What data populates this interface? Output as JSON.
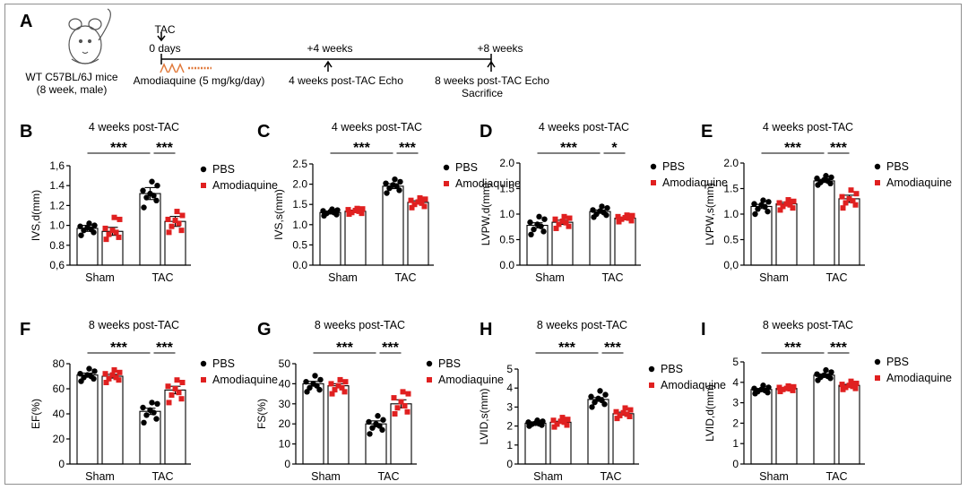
{
  "panel_a": {
    "letter": "A",
    "mouse_label_line1": "WT C57BL/6J mice",
    "mouse_label_line2": "(8 week, male)",
    "tac_label": "TAC",
    "day0_label": "0 days",
    "week4_label": "+4 weeks",
    "week8_label": "+8 weeks",
    "treatment_label": "Amodiaquine (5 mg/kg/day)",
    "echo4_label": "4 weeks post-TAC Echo",
    "echo8_label": "8 weeks post-TAC Echo",
    "sacrifice_label": "Sacrifice",
    "colors": {
      "treatment": "#e07a3c"
    }
  },
  "legend": {
    "pbs": "PBS",
    "amodiaquine": "Amodiaquine"
  },
  "colors": {
    "pbs": "#000000",
    "amodiaquine": "#e02020"
  },
  "chart_data": [
    {
      "letter": "B",
      "type": "bar",
      "title": "4 weeks post-TAC",
      "ylabel": "IVS,d(mm)",
      "categories": [
        "Sham",
        "TAC"
      ],
      "ylim": [
        0.6,
        1.6
      ],
      "yticks": [
        0.6,
        0.8,
        1.0,
        1.2,
        1.4,
        1.6
      ],
      "ytick_labels": [
        "0,6",
        "0.8",
        "1.0",
        "1.2",
        "1.4",
        "1,6"
      ],
      "significance": [
        "***",
        "***"
      ],
      "series": [
        {
          "name": "PBS",
          "values": [
            0.97,
            1.32
          ],
          "error": [
            0.03,
            0.06
          ],
          "points": [
            [
              0.9,
              0.93,
              0.95,
              0.96,
              0.98,
              0.99,
              1.0,
              1.02
            ],
            [
              1.18,
              1.25,
              1.28,
              1.3,
              1.32,
              1.35,
              1.4,
              1.44
            ]
          ]
        },
        {
          "name": "Amodiaquine",
          "values": [
            0.94,
            1.04
          ],
          "error": [
            0.04,
            0.05
          ],
          "points": [
            [
              0.86,
              0.88,
              0.91,
              0.93,
              0.95,
              0.97,
              1.06,
              1.08
            ],
            [
              0.93,
              0.95,
              0.99,
              1.02,
              1.05,
              1.06,
              1.1,
              1.14
            ]
          ]
        }
      ]
    },
    {
      "letter": "C",
      "type": "bar",
      "title": "4 weeks post-TAC",
      "ylabel": "IVS,s(mm)",
      "categories": [
        "Sham",
        "TAC"
      ],
      "ylim": [
        0,
        2.5
      ],
      "yticks": [
        0,
        0.5,
        1.0,
        1.5,
        2.0,
        2.5
      ],
      "ytick_labels": [
        "0.0",
        "0.5",
        "1.0",
        "1.5",
        "2.0",
        "2.5"
      ],
      "significance": [
        "***",
        "***"
      ],
      "series": [
        {
          "name": "PBS",
          "values": [
            1.3,
            1.95
          ],
          "error": [
            0.03,
            0.06
          ],
          "points": [
            [
              1.22,
              1.25,
              1.28,
              1.3,
              1.32,
              1.34,
              1.36,
              1.38
            ],
            [
              1.78,
              1.85,
              1.9,
              1.95,
              1.98,
              2.02,
              2.06,
              2.12
            ]
          ]
        },
        {
          "name": "Amodiaquine",
          "values": [
            1.33,
            1.55
          ],
          "error": [
            0.03,
            0.04
          ],
          "points": [
            [
              1.26,
              1.28,
              1.3,
              1.33,
              1.35,
              1.37,
              1.39,
              1.4
            ],
            [
              1.42,
              1.45,
              1.5,
              1.53,
              1.56,
              1.6,
              1.63,
              1.66
            ]
          ]
        }
      ]
    },
    {
      "letter": "D",
      "type": "bar",
      "title": "4 weeks post-TAC",
      "ylabel": "LVPW,d(mm)",
      "categories": [
        "Sham",
        "TAC"
      ],
      "ylim": [
        0,
        2.0
      ],
      "yticks": [
        0,
        0.5,
        1.0,
        1.5,
        2.0
      ],
      "ytick_labels": [
        "0.0",
        "0.5",
        "1.0",
        "1.5",
        "2.0"
      ],
      "significance": [
        "***",
        "*"
      ],
      "series": [
        {
          "name": "PBS",
          "values": [
            0.78,
            1.05
          ],
          "error": [
            0.05,
            0.03
          ],
          "points": [
            [
              0.6,
              0.66,
              0.7,
              0.76,
              0.8,
              0.84,
              0.9,
              0.95
            ],
            [
              0.94,
              0.98,
              1.0,
              1.03,
              1.06,
              1.08,
              1.12,
              1.15
            ]
          ]
        },
        {
          "name": "Amodiaquine",
          "values": [
            0.84,
            0.92
          ],
          "error": [
            0.04,
            0.02
          ],
          "points": [
            [
              0.72,
              0.76,
              0.8,
              0.83,
              0.86,
              0.9,
              0.92,
              0.95
            ],
            [
              0.85,
              0.87,
              0.9,
              0.92,
              0.93,
              0.95,
              0.97,
              0.98
            ]
          ]
        }
      ]
    },
    {
      "letter": "E",
      "type": "bar",
      "title": "4 weeks post-TAC",
      "ylabel": "LVPW,s(mm)",
      "categories": [
        "Sham",
        "TAC"
      ],
      "ylim": [
        0,
        2.0
      ],
      "yticks": [
        0,
        0.5,
        1.0,
        1.5,
        2.0
      ],
      "ytick_labels": [
        "0,0",
        "0.5",
        "1.0",
        "1.5",
        "2.0"
      ],
      "significance": [
        "***",
        "***"
      ],
      "series": [
        {
          "name": "PBS",
          "values": [
            1.15,
            1.65
          ],
          "error": [
            0.04,
            0.03
          ],
          "points": [
            [
              1.0,
              1.05,
              1.1,
              1.14,
              1.18,
              1.2,
              1.24,
              1.27
            ],
            [
              1.57,
              1.6,
              1.62,
              1.65,
              1.67,
              1.7,
              1.72,
              1.75
            ]
          ]
        },
        {
          "name": "Amodiaquine",
          "values": [
            1.2,
            1.3
          ],
          "error": [
            0.03,
            0.07
          ],
          "points": [
            [
              1.08,
              1.12,
              1.15,
              1.18,
              1.2,
              1.22,
              1.25,
              1.28
            ],
            [
              1.12,
              1.18,
              1.22,
              1.26,
              1.3,
              1.34,
              1.4,
              1.47
            ]
          ]
        }
      ]
    },
    {
      "letter": "F",
      "type": "bar",
      "title": "8 weeks post-TAC",
      "ylabel": "EF(%)",
      "categories": [
        "Sham",
        "TAC"
      ],
      "ylim": [
        0,
        80
      ],
      "yticks": [
        0,
        20,
        40,
        60,
        80
      ],
      "ytick_labels": [
        "0",
        "20",
        "40",
        "60",
        "80"
      ],
      "significance": [
        "***",
        "***"
      ],
      "series": [
        {
          "name": "PBS",
          "values": [
            71,
            42
          ],
          "error": [
            1.5,
            2.5
          ],
          "points": [
            [
              66,
              68,
              69,
              70,
              71,
              72,
              74,
              76
            ],
            [
              33,
              36,
              39,
              41,
              43,
              45,
              48,
              49
            ]
          ]
        },
        {
          "name": "Amodiaquine",
          "values": [
            70,
            59
          ],
          "error": [
            1.5,
            3
          ],
          "points": [
            [
              65,
              67,
              68,
              69,
              71,
              72,
              73,
              75
            ],
            [
              49,
              52,
              55,
              57,
              60,
              62,
              65,
              67
            ]
          ]
        }
      ]
    },
    {
      "letter": "G",
      "type": "bar",
      "title": "8 weeks post-TAC",
      "ylabel": "FS(%)",
      "categories": [
        "Sham",
        "TAC"
      ],
      "ylim": [
        0,
        50
      ],
      "yticks": [
        0,
        10,
        20,
        30,
        40,
        50
      ],
      "ytick_labels": [
        "0",
        "10",
        "20",
        "30",
        "40",
        "50"
      ],
      "significance": [
        "***",
        "***"
      ],
      "series": [
        {
          "name": "PBS",
          "values": [
            40,
            20
          ],
          "error": [
            1.2,
            1.5
          ],
          "points": [
            [
              36,
              37,
              38,
              39,
              40,
              41,
              42,
              44
            ],
            [
              15,
              17,
              18,
              19,
              20,
              21,
              22,
              24
            ]
          ]
        },
        {
          "name": "Amodiaquine",
          "values": [
            39,
            30
          ],
          "error": [
            1.0,
            2.0
          ],
          "points": [
            [
              35,
              36,
              37,
              38,
              39,
              40,
              41,
              42
            ],
            [
              25,
              26,
              28,
              29,
              31,
              33,
              35,
              36
            ]
          ]
        }
      ]
    },
    {
      "letter": "H",
      "type": "bar",
      "title": "8 weeks post-TAC",
      "ylabel": "LVID,s(mm)",
      "categories": [
        "Sham",
        "TAC"
      ],
      "ylim": [
        0,
        5
      ],
      "yticks": [
        0,
        1,
        2,
        3,
        4,
        5
      ],
      "ytick_labels": [
        "0",
        "1",
        "2",
        "3",
        "4",
        "5"
      ],
      "significance": [
        "***",
        "***"
      ],
      "series": [
        {
          "name": "PBS",
          "values": [
            2.15,
            3.4
          ],
          "error": [
            0.04,
            0.1
          ],
          "points": [
            [
              2.0,
              2.05,
              2.1,
              2.12,
              2.15,
              2.2,
              2.25,
              2.3
            ],
            [
              3.0,
              3.15,
              3.25,
              3.35,
              3.45,
              3.55,
              3.65,
              3.85
            ]
          ]
        },
        {
          "name": "Amodiaquine",
          "values": [
            2.2,
            2.65
          ],
          "error": [
            0.05,
            0.08
          ],
          "points": [
            [
              1.95,
              2.05,
              2.1,
              2.2,
              2.25,
              2.3,
              2.35,
              2.45
            ],
            [
              2.4,
              2.5,
              2.55,
              2.62,
              2.7,
              2.75,
              2.85,
              2.95
            ]
          ]
        }
      ]
    },
    {
      "letter": "I",
      "type": "bar",
      "title": "8 weeks post-TAC",
      "ylabel": "LVID,d(mm)",
      "categories": [
        "Sham",
        "TAC"
      ],
      "ylim": [
        0,
        5
      ],
      "yticks": [
        0,
        1,
        2,
        3,
        4,
        5
      ],
      "ytick_labels": [
        "0",
        "1",
        "2",
        "3",
        "4",
        "5"
      ],
      "significance": [
        "***",
        "***"
      ],
      "series": [
        {
          "name": "PBS",
          "values": [
            3.65,
            4.35
          ],
          "error": [
            0.05,
            0.06
          ],
          "points": [
            [
              3.45,
              3.5,
              3.55,
              3.6,
              3.65,
              3.7,
              3.75,
              3.85
            ],
            [
              4.1,
              4.2,
              4.25,
              4.3,
              4.35,
              4.4,
              4.5,
              4.6
            ]
          ]
        },
        {
          "name": "Amodiaquine",
          "values": [
            3.7,
            3.85
          ],
          "error": [
            0.04,
            0.05
          ],
          "points": [
            [
              3.55,
              3.6,
              3.65,
              3.68,
              3.7,
              3.75,
              3.78,
              3.82
            ],
            [
              3.65,
              3.7,
              3.75,
              3.8,
              3.85,
              3.9,
              3.95,
              4.05
            ]
          ]
        }
      ]
    }
  ]
}
